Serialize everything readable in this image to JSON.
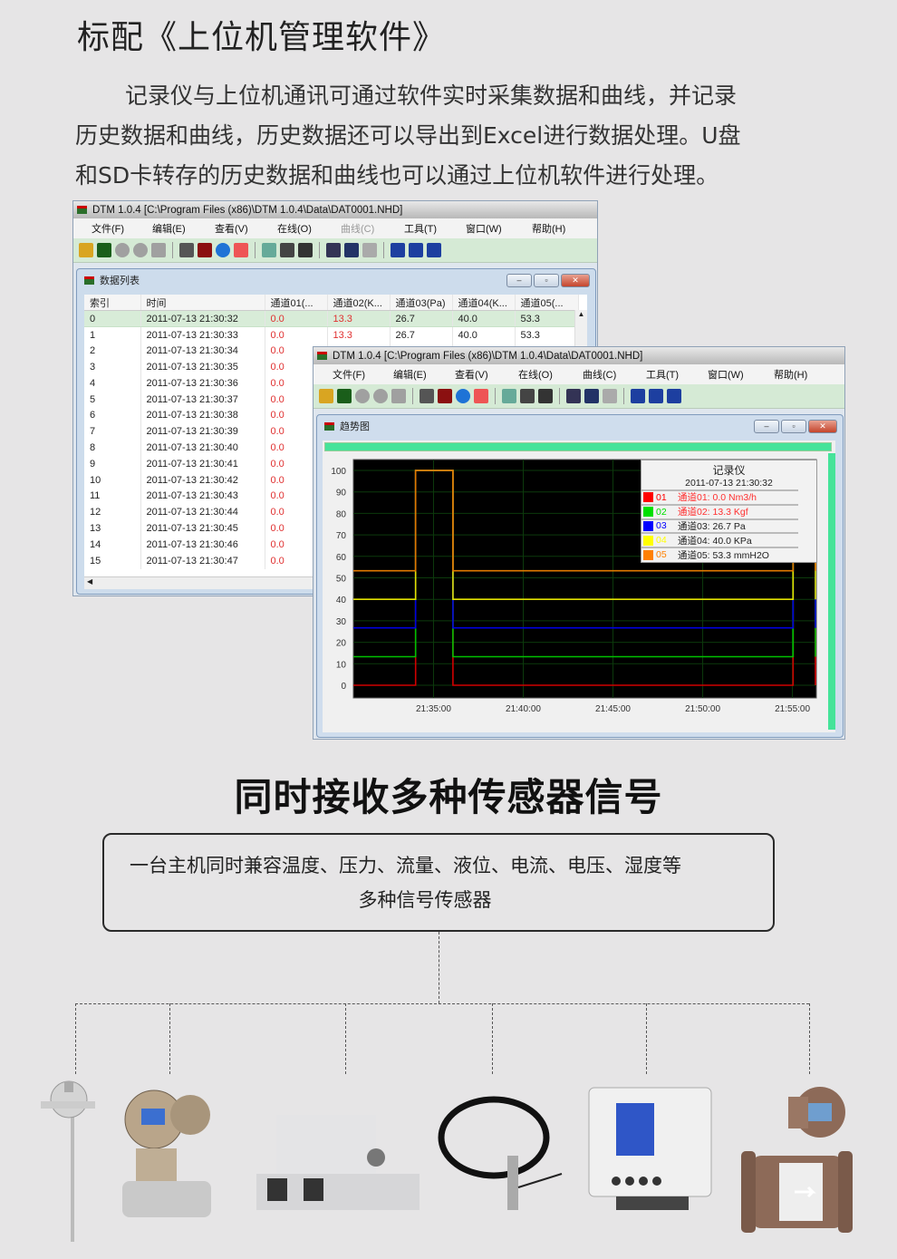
{
  "header": {
    "title": "标配《上位机管理软件》",
    "paragraph": [
      "记录仪与上位机通讯可通过软件实时采集数据和曲线，并记录",
      "历史数据和曲线，历史数据还可以导出到Excel进行数据处理。U盘",
      "和SD卡转存的历史数据和曲线也可以通过上位机软件进行处理。"
    ]
  },
  "app": {
    "title": "DTM 1.0.4 [C:\\Program Files (x86)\\DTM 1.0.4\\Data\\DAT0001.NHD]",
    "menu": [
      "文件(F)",
      "编辑(E)",
      "查看(V)",
      "在线(O)",
      "曲线(C)",
      "工具(T)",
      "窗口(W)",
      "帮助(H)"
    ],
    "toolbar_icons": [
      "open-icon",
      "chart-icon",
      "circle-icon",
      "circle-icon",
      "stop-icon",
      "table-icon",
      "sigma-icon",
      "info-icon",
      "pie-icon",
      "export-icon",
      "print-icon",
      "preview-icon",
      "copy-icon",
      "zoom-in-icon",
      "zoom-out-icon",
      "cascade-icon",
      "tile-horizontal-icon",
      "tile-vertical-icon"
    ],
    "window_buttons": {
      "minimize": "–",
      "restore": "▫",
      "close": "✕"
    }
  },
  "data_list": {
    "title": "数据列表",
    "columns": [
      "索引",
      "时间",
      "通道01(...",
      "通道02(K...",
      "通道03(Pa)",
      "通道04(K...",
      "通道05(..."
    ],
    "rows": [
      [
        "0",
        "2011-07-13 21:30:32",
        "0.0",
        "13.3",
        "26.7",
        "40.0",
        "53.3"
      ],
      [
        "1",
        "2011-07-13 21:30:33",
        "0.0",
        "13.3",
        "26.7",
        "40.0",
        "53.3"
      ],
      [
        "2",
        "2011-07-13 21:30:34",
        "0.0"
      ],
      [
        "3",
        "2011-07-13 21:30:35",
        "0.0"
      ],
      [
        "4",
        "2011-07-13 21:30:36",
        "0.0"
      ],
      [
        "5",
        "2011-07-13 21:30:37",
        "0.0"
      ],
      [
        "6",
        "2011-07-13 21:30:38",
        "0.0"
      ],
      [
        "7",
        "2011-07-13 21:30:39",
        "0.0"
      ],
      [
        "8",
        "2011-07-13 21:30:40",
        "0.0"
      ],
      [
        "9",
        "2011-07-13 21:30:41",
        "0.0"
      ],
      [
        "10",
        "2011-07-13 21:30:42",
        "0.0"
      ],
      [
        "11",
        "2011-07-13 21:30:43",
        "0.0"
      ],
      [
        "12",
        "2011-07-13 21:30:44",
        "0.0"
      ],
      [
        "13",
        "2011-07-13 21:30:45",
        "0.0"
      ],
      [
        "14",
        "2011-07-13 21:30:46",
        "0.0"
      ],
      [
        "15",
        "2011-07-13 21:30:47",
        "0.0"
      ]
    ]
  },
  "trend": {
    "title": "趋势图",
    "legend": {
      "title": "记录仪",
      "time": "2011-07-13 21:30:32",
      "items": [
        {
          "id": "01",
          "label": "通道01: 0.0 Nm3/h",
          "color": "#ff0000",
          "text_color": "#ff3030"
        },
        {
          "id": "02",
          "label": "通道02: 13.3 Kgf",
          "color": "#00e000",
          "text_color": "#ff3030"
        },
        {
          "id": "03",
          "label": "通道03: 26.7 Pa",
          "color": "#0000ff",
          "text_color": "#222222"
        },
        {
          "id": "04",
          "label": "通道04: 40.0 KPa",
          "color": "#ffff00",
          "text_color": "#222222"
        },
        {
          "id": "05",
          "label": "通道05: 53.3 mmH2O",
          "color": "#ff8000",
          "text_color": "#222222"
        }
      ]
    }
  },
  "chart_data": {
    "type": "line",
    "xlabel": "",
    "ylabel": "",
    "ylim": [
      0,
      100
    ],
    "yticks": [
      "100",
      "90",
      "80",
      "70",
      "60",
      "50",
      "40",
      "30",
      "20",
      "10",
      "0"
    ],
    "xticks": [
      "21:35:00",
      "21:40:00",
      "21:45:00",
      "21:50:00",
      "21:55:00"
    ],
    "xlim": [
      "21:30:32",
      "21:56:20"
    ],
    "grid": true,
    "background": "#000000",
    "x": [
      "21:30:32",
      "21:34:00",
      "21:34:00",
      "21:36:05",
      "21:36:05",
      "21:55:02",
      "21:55:02",
      "21:56:30",
      "21:56:30"
    ],
    "series": [
      {
        "color": "#d00000",
        "values": [
          0,
          0,
          100,
          100,
          0,
          0,
          100,
          100,
          0
        ]
      },
      {
        "color": "#00c000",
        "values": [
          13.3,
          13.3,
          100,
          100,
          13.3,
          13.3,
          100,
          100,
          13.3
        ]
      },
      {
        "color": "#0000e0",
        "values": [
          26.7,
          26.7,
          100,
          100,
          26.7,
          26.7,
          100,
          100,
          26.7
        ]
      },
      {
        "color": "#e0e000",
        "values": [
          40,
          40,
          100,
          100,
          40,
          40,
          100,
          100,
          40
        ]
      },
      {
        "color": "#e07800",
        "values": [
          53.3,
          53.3,
          100,
          100,
          53.3,
          53.3,
          100,
          100,
          53.3
        ]
      }
    ]
  },
  "section": {
    "title": "同时接收多种传感器信号",
    "description": [
      "一台主机同时兼容温度、压力、流量、液位、电流、电压、湿度等",
      "多种信号传感器"
    ],
    "sensors": [
      "temperature-sensor",
      "pressure-transmitter",
      "current-sensor",
      "level-sensor",
      "humidity-transmitter",
      "flow-meter"
    ]
  }
}
